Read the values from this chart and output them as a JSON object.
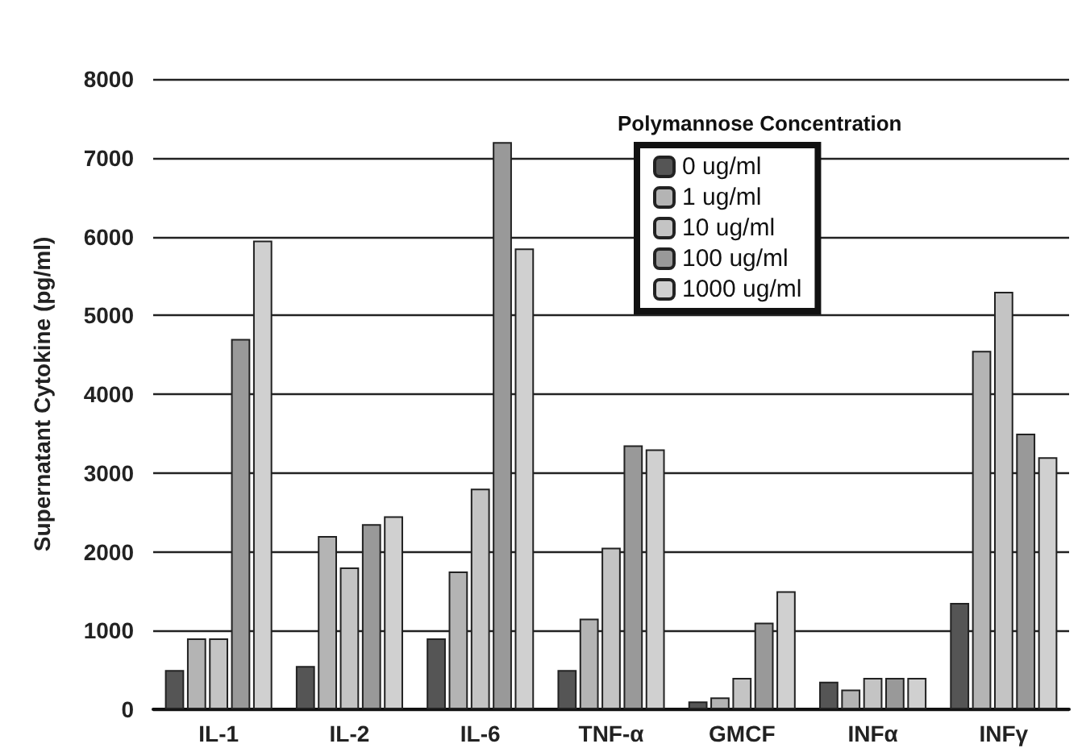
{
  "chart_data": {
    "type": "bar",
    "ylabel": "Supernatant Cytokine (pg/ml)",
    "legend_title": "Polymannose Concentration",
    "categories": [
      "IL-1",
      "IL-2",
      "IL-6",
      "TNF-α",
      "GMCF",
      "INFα",
      "INFγ"
    ],
    "series": [
      {
        "name": "0 ug/ml",
        "color": "#555555",
        "values": [
          500,
          550,
          900,
          500,
          100,
          350,
          1350
        ]
      },
      {
        "name": "1 ug/ml",
        "color": "#b4b4b4",
        "values": [
          900,
          2200,
          1750,
          1150,
          150,
          250,
          4550
        ]
      },
      {
        "name": "10 ug/ml",
        "color": "#c4c4c4",
        "values": [
          900,
          1800,
          2800,
          2050,
          400,
          400,
          5300
        ]
      },
      {
        "name": "100 ug/ml",
        "color": "#999999",
        "values": [
          4700,
          2350,
          7200,
          3350,
          1100,
          400,
          3500
        ]
      },
      {
        "name": "1000 ug/ml",
        "color": "#d0d0d0",
        "values": [
          5950,
          2450,
          5850,
          3300,
          1500,
          400,
          3200
        ]
      }
    ],
    "ylim": [
      0,
      8000
    ],
    "yticks": [
      0,
      1000,
      2000,
      3000,
      4000,
      5000,
      6000,
      7000,
      8000
    ],
    "grid": "y",
    "legend": "top right"
  }
}
